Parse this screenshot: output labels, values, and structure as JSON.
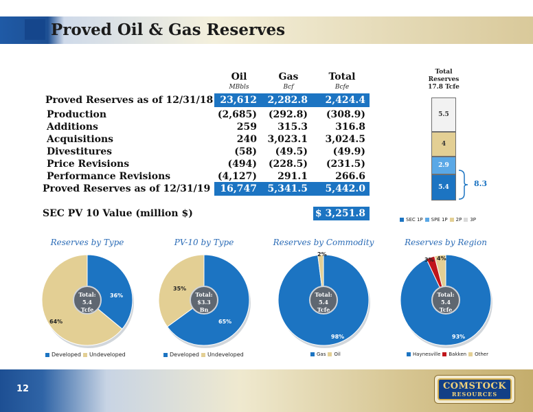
{
  "slide": {
    "title": "Proved Oil & Gas Reserves",
    "page_number": "12"
  },
  "table": {
    "headers": [
      {
        "name": "Oil",
        "unit": "MBbls"
      },
      {
        "name": "Gas",
        "unit": "Bcf"
      },
      {
        "name": "Total",
        "unit": "Bcfe"
      }
    ],
    "rows": [
      {
        "label": "Proved Reserves as of 12/31/18",
        "values": [
          "23,612",
          "2,282.8",
          "2,424.4"
        ],
        "highlight": true
      },
      {
        "label": "Production",
        "values": [
          "(2,685)",
          "(292.8)",
          "(308.9)"
        ]
      },
      {
        "label": "Additions",
        "values": [
          "259",
          "315.3",
          "316.8"
        ]
      },
      {
        "label": "Acquisitions",
        "values": [
          "240",
          "3,023.1",
          "3,024.5"
        ]
      },
      {
        "label": "Divestitures",
        "values": [
          "(58)",
          "(49.5)",
          "(49.9)"
        ]
      },
      {
        "label": "Price Revisions",
        "values": [
          "(494)",
          "(228.5)",
          "(231.5)"
        ]
      },
      {
        "label": "Performance Revisions",
        "values": [
          "(4,127)",
          "291.1",
          "266.6"
        ]
      },
      {
        "label": "Proved Reserves as of 12/31/19",
        "values": [
          "16,747",
          "5,341.5",
          "5,442.0"
        ],
        "highlight": true
      }
    ],
    "pv10_label": "SEC PV 10 Value (million $)",
    "pv10_value": "$ 3,251.8",
    "highlight_color": "#1c74c2"
  },
  "total_reserves": {
    "title_lines": [
      "Total",
      "Reserves",
      "17.8 Tcfe"
    ],
    "bracket_label": "8.3",
    "legend": [
      "SEC 1P",
      "SPE 1P",
      "2P",
      "3P"
    ],
    "chart_data": {
      "type": "bar",
      "stacked": true,
      "categories": [
        ""
      ],
      "series": [
        {
          "name": "SEC 1P",
          "values": [
            5.4
          ],
          "color": "#1c74c2"
        },
        {
          "name": "SPE 1P",
          "values": [
            2.9
          ],
          "color": "#5aa8e6"
        },
        {
          "name": "2P",
          "values": [
            4
          ],
          "color": "#e3cf94"
        },
        {
          "name": "3P",
          "values": [
            5.5
          ],
          "color": "#f2f2f2"
        }
      ],
      "data_labels": [
        "5.4",
        "2.9",
        "4",
        "5.5"
      ]
    }
  },
  "pies": [
    {
      "title": "Reserves by Type",
      "center": [
        "Total:",
        "5.4",
        "Tcfe"
      ],
      "chart_data": {
        "type": "pie",
        "labels": [
          "Developed",
          "Undeveloped"
        ],
        "values": [
          36,
          64
        ],
        "colors": [
          "#1c74c2",
          "#e3cf94"
        ],
        "data_labels": [
          "36%",
          "64%"
        ]
      }
    },
    {
      "title": "PV-10 by Type",
      "center": [
        "Total:",
        "$3.3",
        "Bn"
      ],
      "chart_data": {
        "type": "pie",
        "labels": [
          "Developed",
          "Undeveloped"
        ],
        "values": [
          65,
          35
        ],
        "colors": [
          "#1c74c2",
          "#e3cf94"
        ],
        "data_labels": [
          "65%",
          "35%"
        ]
      }
    },
    {
      "title": "Reserves by Commodity",
      "center": [
        "Total:",
        "5.4",
        "Tcfe"
      ],
      "chart_data": {
        "type": "pie",
        "labels": [
          "Gas",
          "Oil"
        ],
        "values": [
          98,
          2
        ],
        "colors": [
          "#1c74c2",
          "#e3cf94"
        ],
        "data_labels": [
          "98%",
          "2%"
        ]
      }
    },
    {
      "title": "Reserves by Region",
      "center": [
        "Total:",
        "5.4",
        "Tcfe"
      ],
      "chart_data": {
        "type": "pie",
        "labels": [
          "Haynesville",
          "Bakken",
          "Other"
        ],
        "values": [
          93,
          3,
          4
        ],
        "colors": [
          "#1c74c2",
          "#c0151b",
          "#e3cf94"
        ],
        "data_labels": [
          "93%",
          "3%",
          "4%"
        ]
      }
    }
  ],
  "logo": {
    "line1": "COMSTOCK",
    "line2": "RESOURCES"
  }
}
